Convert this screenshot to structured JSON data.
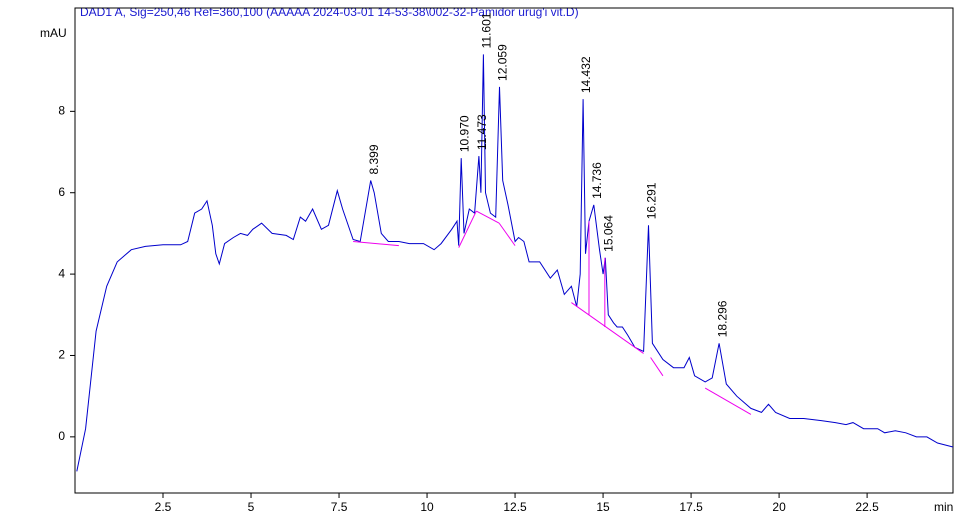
{
  "chart_data": {
    "type": "line",
    "title": "DAD1 A, Sig=250,46 Ref=360,100 (AAAAA 2024-03-01 14-53-38\\002-32-Pamidor urug'i vit.D)",
    "y_label": "mAU",
    "x_label": "min",
    "color": "#0000cc",
    "baseline_color": "#ee00ee",
    "xlim": [
      0,
      24.94
    ],
    "ylim": [
      -1.38,
      10.54
    ],
    "xticks": [
      2.5,
      5,
      7.5,
      10,
      12.5,
      15,
      17.5,
      20,
      22.5
    ],
    "yticks": [
      0,
      2,
      4,
      6,
      8
    ],
    "x": [
      0.05,
      0.3,
      0.6,
      0.9,
      1.2,
      1.6,
      2.0,
      2.5,
      3.0,
      3.2,
      3.4,
      3.6,
      3.75,
      3.9,
      4.0,
      4.1,
      4.25,
      4.5,
      4.7,
      4.9,
      5.05,
      5.3,
      5.6,
      6.0,
      6.2,
      6.4,
      6.55,
      6.75,
      7.0,
      7.2,
      7.45,
      7.6,
      7.9,
      8.1,
      8.3,
      8.4,
      8.5,
      8.7,
      8.9,
      9.2,
      9.5,
      9.9,
      10.2,
      10.4,
      10.7,
      10.85,
      10.9,
      10.97,
      11.05,
      11.2,
      11.35,
      11.473,
      11.53,
      11.601,
      11.66,
      11.8,
      11.95,
      12.059,
      12.15,
      12.3,
      12.5,
      12.6,
      12.75,
      12.9,
      13.2,
      13.5,
      13.7,
      13.9,
      14.1,
      14.25,
      14.35,
      14.432,
      14.5,
      14.6,
      14.736,
      14.9,
      15.0,
      15.064,
      15.15,
      15.3,
      15.4,
      15.55,
      15.7,
      15.9,
      16.15,
      16.291,
      16.4,
      16.7,
      17.0,
      17.3,
      17.45,
      17.6,
      17.9,
      18.1,
      18.296,
      18.5,
      18.8,
      19.2,
      19.5,
      19.7,
      19.9,
      20.3,
      20.7,
      21.2,
      21.6,
      21.9,
      22.1,
      22.4,
      22.8,
      23.0,
      23.3,
      23.6,
      23.9,
      24.2,
      24.5,
      24.94
    ],
    "values": [
      -0.85,
      0.2,
      2.6,
      3.7,
      4.3,
      4.6,
      4.68,
      4.72,
      4.72,
      4.8,
      5.5,
      5.6,
      5.8,
      5.2,
      4.5,
      4.25,
      4.75,
      4.9,
      5.0,
      4.95,
      5.1,
      5.25,
      5.0,
      4.95,
      4.85,
      5.4,
      5.3,
      5.6,
      5.1,
      5.2,
      6.05,
      5.6,
      4.85,
      4.8,
      5.8,
      6.3,
      6.0,
      5.0,
      4.8,
      4.8,
      4.75,
      4.75,
      4.6,
      4.75,
      5.1,
      5.3,
      4.7,
      6.85,
      5.0,
      5.6,
      5.5,
      6.9,
      6.0,
      9.4,
      6.0,
      5.5,
      5.4,
      8.6,
      6.3,
      5.7,
      4.8,
      4.9,
      4.8,
      4.3,
      4.3,
      3.9,
      4.1,
      3.5,
      3.7,
      3.2,
      4.0,
      8.3,
      4.5,
      5.3,
      5.7,
      4.6,
      4.0,
      4.4,
      3.0,
      2.8,
      2.7,
      2.7,
      2.5,
      2.2,
      2.1,
      5.2,
      2.3,
      1.9,
      1.7,
      1.7,
      1.95,
      1.5,
      1.35,
      1.45,
      2.3,
      1.3,
      1.0,
      0.7,
      0.6,
      0.8,
      0.6,
      0.45,
      0.45,
      0.4,
      0.35,
      0.3,
      0.35,
      0.2,
      0.2,
      0.1,
      0.15,
      0.1,
      0.0,
      0.0,
      -0.15,
      -0.25
    ],
    "annotations": [
      {
        "text": "8.399",
        "x": 8.399,
        "y": 6.3
      },
      {
        "text": "10.970",
        "x": 10.97,
        "y": 6.85
      },
      {
        "text": "11.473",
        "x": 11.473,
        "y": 6.9
      },
      {
        "text": "11.601",
        "x": 11.601,
        "y": 9.4
      },
      {
        "text": "12.059",
        "x": 12.059,
        "y": 8.6
      },
      {
        "text": "14.432",
        "x": 14.432,
        "y": 8.3
      },
      {
        "text": "14.736",
        "x": 14.736,
        "y": 5.7
      },
      {
        "text": "15.064",
        "x": 15.064,
        "y": 4.4
      },
      {
        "text": "16.291",
        "x": 16.291,
        "y": 5.2
      },
      {
        "text": "18.296",
        "x": 18.296,
        "y": 2.3
      }
    ],
    "baselines": [
      [
        [
          7.9,
          4.8
        ],
        [
          9.2,
          4.7
        ]
      ],
      [
        [
          10.9,
          4.65
        ],
        [
          11.4,
          5.55
        ]
      ],
      [
        [
          11.4,
          5.55
        ],
        [
          12.05,
          5.25
        ]
      ],
      [
        [
          12.05,
          5.25
        ],
        [
          12.5,
          4.7
        ]
      ],
      [
        [
          14.1,
          3.3
        ],
        [
          16.15,
          2.05
        ]
      ],
      [
        [
          14.6,
          3.0
        ],
        [
          14.6,
          5.3
        ]
      ],
      [
        [
          15.05,
          2.7
        ],
        [
          15.05,
          4.4
        ]
      ],
      [
        [
          16.35,
          1.95
        ],
        [
          16.7,
          1.5
        ]
      ],
      [
        [
          17.9,
          1.2
        ],
        [
          19.2,
          0.55
        ]
      ]
    ]
  }
}
